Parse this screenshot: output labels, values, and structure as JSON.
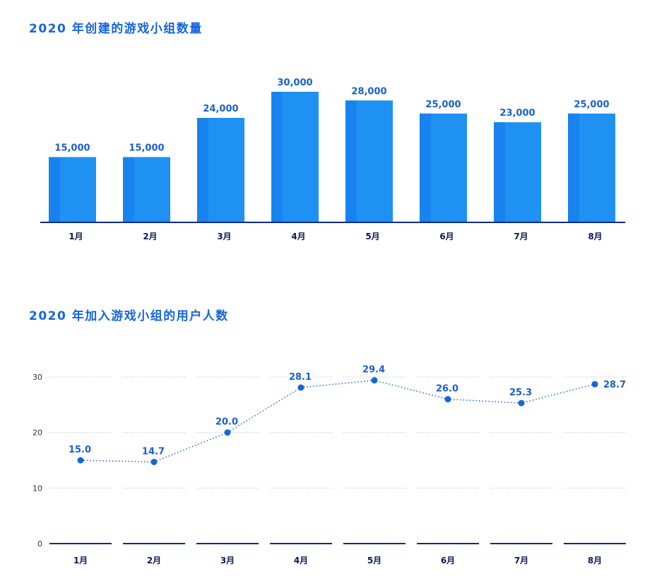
{
  "chart_data": [
    {
      "type": "bar",
      "title": "2020 年创建的游戏小组数量",
      "categories": [
        "1月",
        "2月",
        "3月",
        "4月",
        "5月",
        "6月",
        "7月",
        "8月"
      ],
      "values": [
        15000,
        15000,
        24000,
        30000,
        28000,
        25000,
        23000,
        25000
      ],
      "value_labels": [
        "15,000",
        "15,000",
        "24,000",
        "30,000",
        "28,000",
        "25,000",
        "23,000",
        "25,000"
      ],
      "xlabel": "",
      "ylabel": "",
      "ylim": [
        0,
        35000
      ],
      "grid": false,
      "colors": {
        "bar": "#1f91f3",
        "bar_edge": "#1883ef",
        "axis": "#0d2a8a",
        "label": "#1a5fd0"
      }
    },
    {
      "type": "line",
      "title": "2020 年加入游戏小组的用户人数",
      "categories": [
        "1月",
        "2月",
        "3月",
        "4月",
        "5月",
        "6月",
        "7月",
        "8月"
      ],
      "values": [
        15.0,
        14.7,
        20.0,
        28.1,
        29.4,
        26.0,
        25.3,
        28.7
      ],
      "value_labels": [
        "15.0",
        "14.7",
        "20.0",
        "28.1",
        "29.4",
        "26.0",
        "25.3",
        "28.7"
      ],
      "y_ticks": [
        0,
        10,
        20,
        30
      ],
      "xlabel": "",
      "ylabel": "",
      "ylim": [
        0,
        30
      ],
      "grid": true,
      "line_style": "dotted",
      "colors": {
        "line": "#1565e0",
        "point": "#1565e0",
        "axis": "#0d2a8a",
        "grid": "#bbbbbb",
        "label": "#1a5fd0"
      }
    }
  ]
}
